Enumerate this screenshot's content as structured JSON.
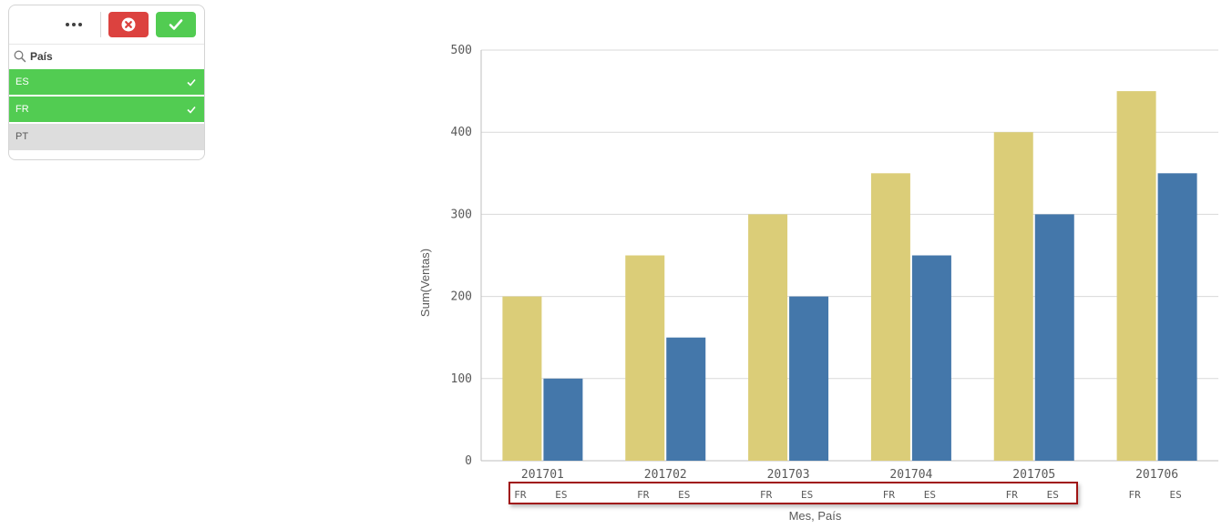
{
  "filter_panel": {
    "field_label": "País",
    "toolbar": {
      "more_icon": "more-dots-icon",
      "cancel_icon": "close-circle-icon",
      "confirm_icon": "checkmark-icon"
    },
    "items": [
      {
        "label": "ES",
        "state": "selected"
      },
      {
        "label": "FR",
        "state": "selected"
      },
      {
        "label": "PT",
        "state": "excluded"
      }
    ],
    "colors": {
      "selected": "#52cc52",
      "excluded": "#dddddd",
      "cancel": "#dc423f",
      "confirm": "#52cc52"
    }
  },
  "chart_data": {
    "type": "bar",
    "categories": [
      "201701",
      "201702",
      "201703",
      "201704",
      "201705",
      "201706"
    ],
    "inner_dimension": [
      "FR",
      "ES"
    ],
    "series": [
      {
        "name": "FR",
        "color": "#dbcd78",
        "values": [
          200,
          250,
          300,
          350,
          400,
          450
        ]
      },
      {
        "name": "ES",
        "color": "#4477aa",
        "values": [
          100,
          150,
          200,
          250,
          300,
          350
        ]
      }
    ],
    "xlabel": "Mes, País",
    "ylabel": "Sum(Ventas)",
    "ylim": [
      0,
      500
    ],
    "yticks": [
      0,
      100,
      200,
      300,
      400,
      500
    ],
    "grid": true,
    "highlight": {
      "color": "#a01414",
      "covers": [
        "201701",
        "201702",
        "201703",
        "201704",
        "201705"
      ]
    }
  }
}
